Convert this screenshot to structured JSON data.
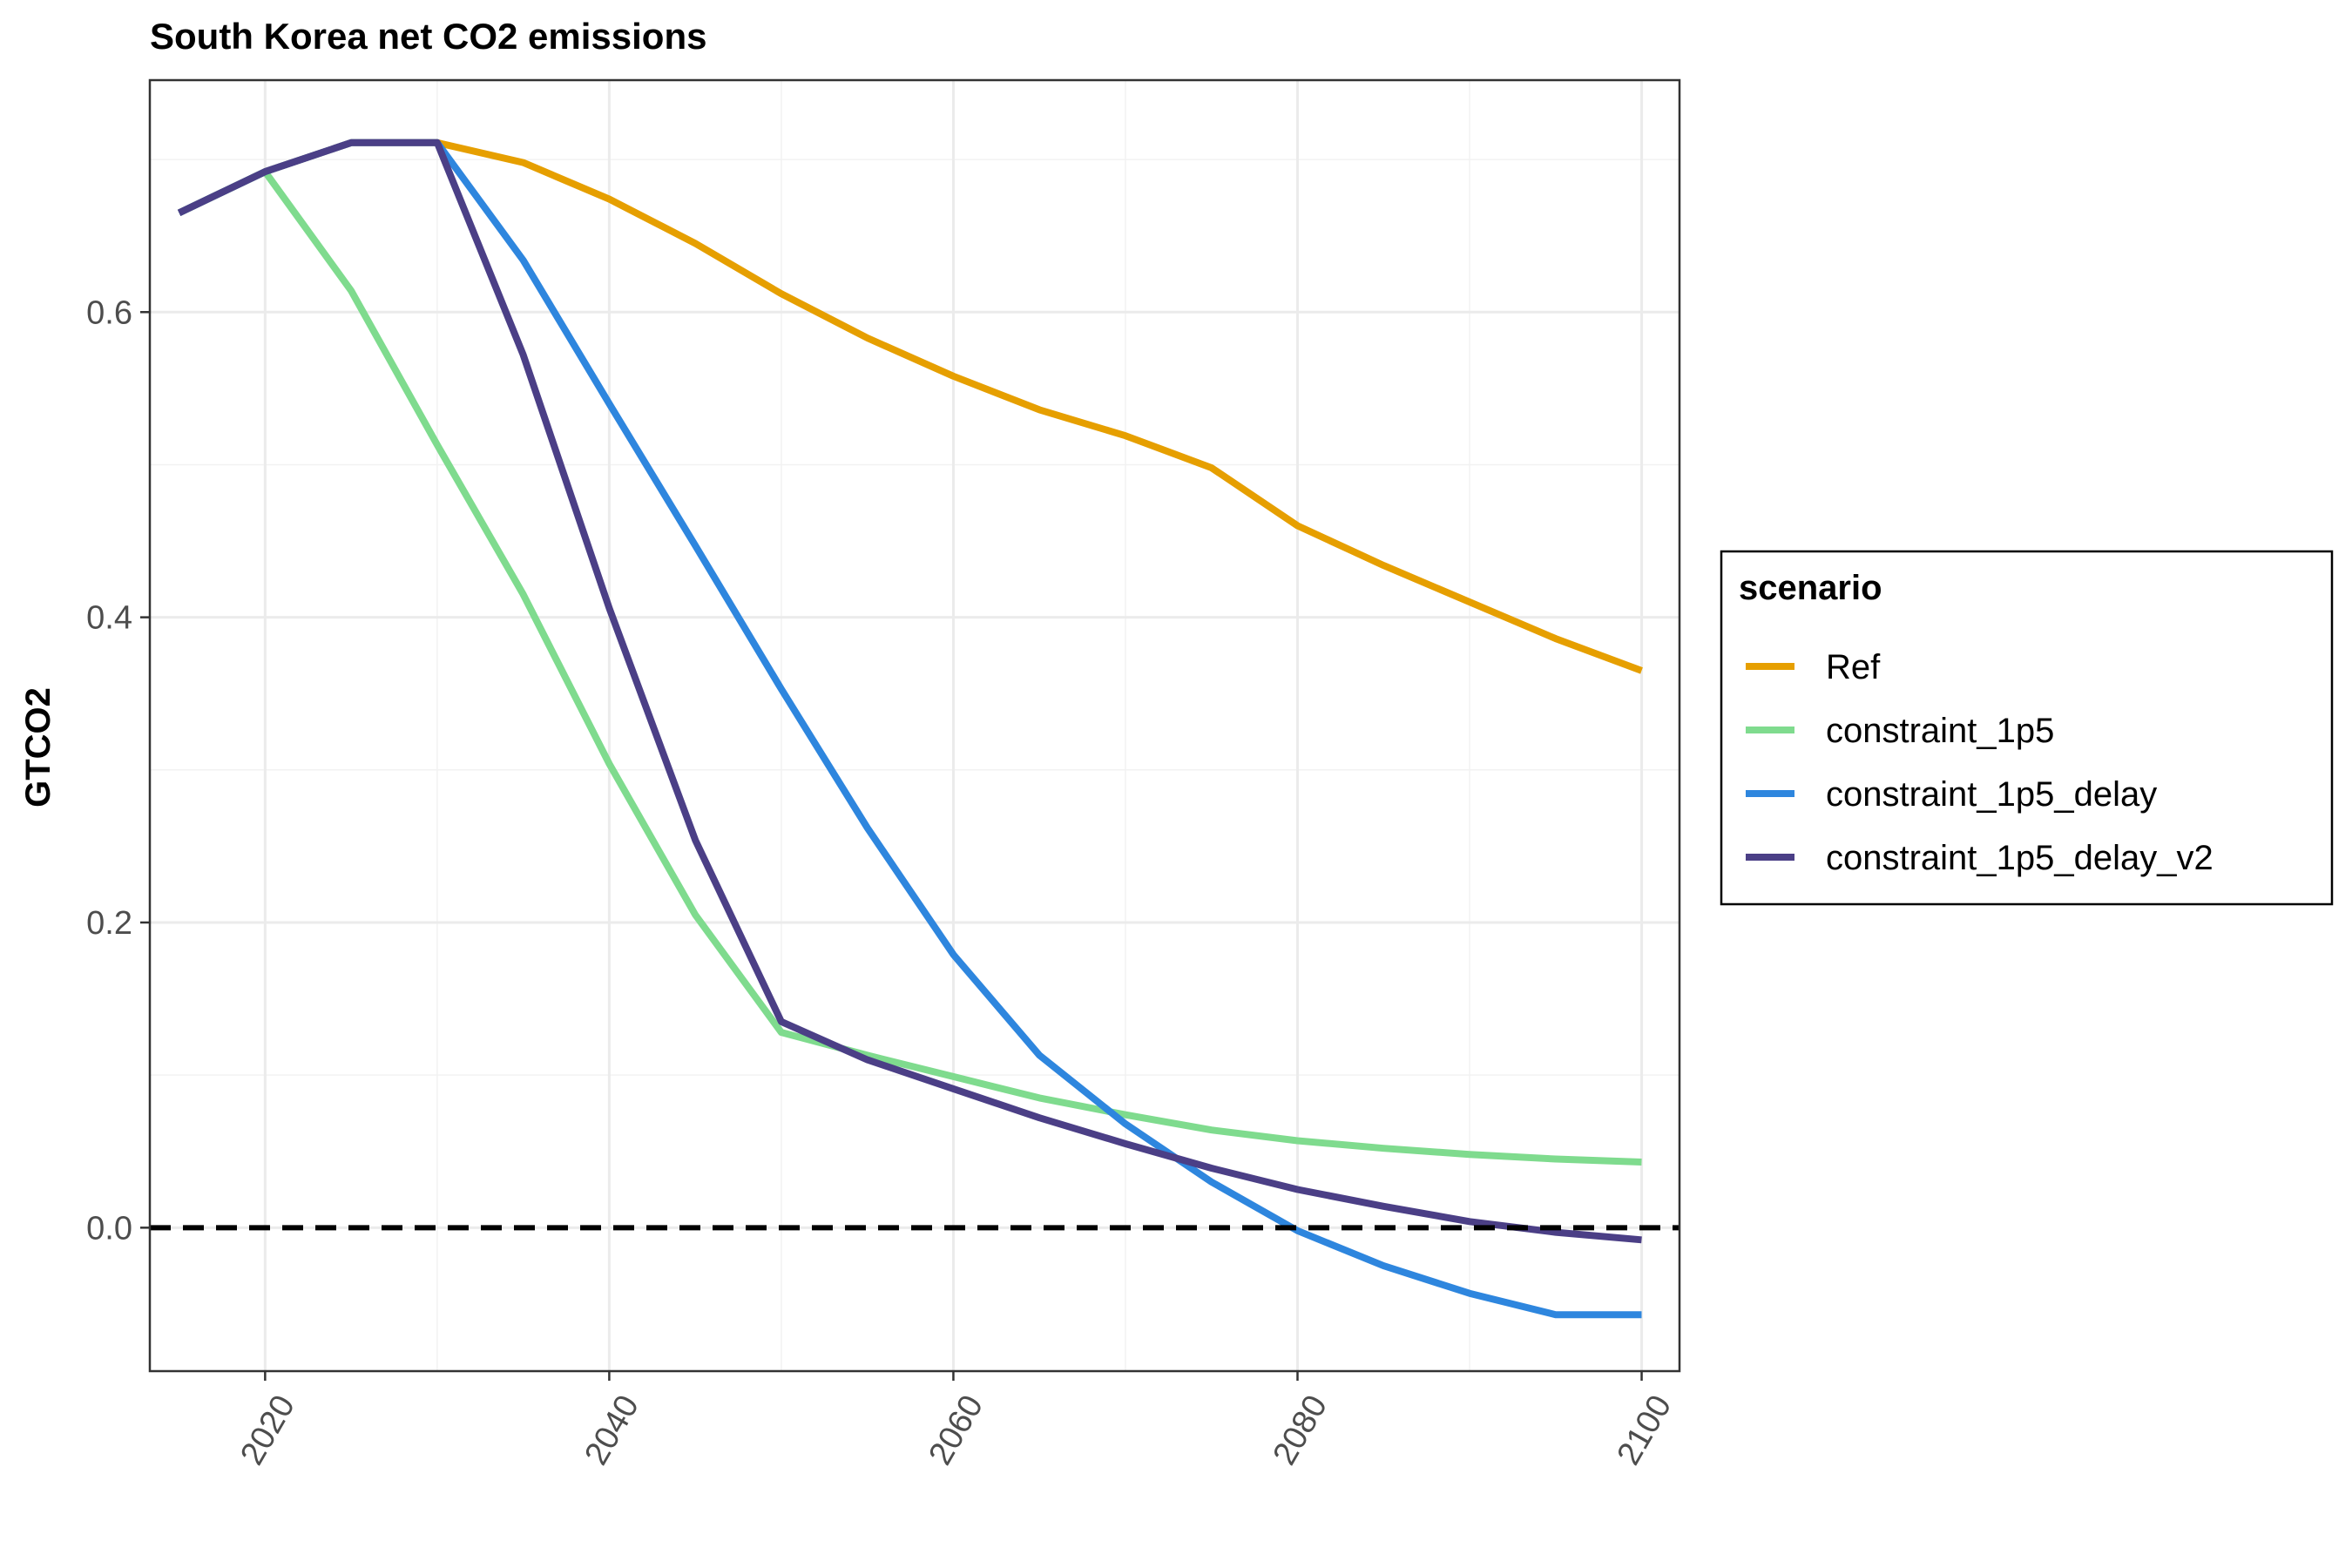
{
  "chart_data": {
    "type": "line",
    "title": "South Korea net CO2 emissions",
    "xlabel": "",
    "ylabel": "GTCO2",
    "xlim": [
      2013.3,
      2102.2
    ],
    "ylim": [
      -0.094,
      0.752
    ],
    "x_ticks": [
      2020,
      2040,
      2060,
      2080,
      2100
    ],
    "y_ticks": [
      0.0,
      0.2,
      0.4,
      0.6
    ],
    "y_tick_labels": [
      "0.0",
      "0.2",
      "0.4",
      "0.6"
    ],
    "grid": true,
    "reference_line": {
      "y": 0,
      "style": "dashed",
      "color": "#000000"
    },
    "legend": {
      "title": "scenario",
      "position": "right"
    },
    "series": [
      {
        "name": "Ref",
        "color": "#E69F00",
        "x": [
          2015,
          2020,
          2025,
          2030,
          2035,
          2040,
          2045,
          2050,
          2055,
          2060,
          2065,
          2070,
          2075,
          2080,
          2085,
          2090,
          2095,
          2100
        ],
        "values": [
          0.665,
          0.692,
          0.711,
          0.711,
          0.698,
          0.674,
          0.645,
          0.612,
          0.583,
          0.558,
          0.536,
          0.519,
          0.498,
          0.46,
          0.434,
          0.41,
          0.386,
          0.365
        ]
      },
      {
        "name": "constraint_1p5",
        "color": "#7FDB8E",
        "x": [
          2015,
          2020,
          2025,
          2030,
          2035,
          2040,
          2045,
          2050,
          2055,
          2060,
          2065,
          2070,
          2075,
          2080,
          2085,
          2090,
          2095,
          2100
        ],
        "values": [
          0.665,
          0.692,
          0.614,
          0.513,
          0.415,
          0.304,
          0.205,
          0.128,
          0.113,
          0.099,
          0.085,
          0.074,
          0.064,
          0.057,
          0.052,
          0.048,
          0.045,
          0.043
        ]
      },
      {
        "name": "constraint_1p5_delay",
        "color": "#2E86DE",
        "x": [
          2015,
          2020,
          2025,
          2030,
          2035,
          2040,
          2045,
          2050,
          2055,
          2060,
          2065,
          2070,
          2075,
          2080,
          2085,
          2090,
          2095,
          2100
        ],
        "values": [
          0.665,
          0.692,
          0.711,
          0.711,
          0.634,
          0.54,
          0.447,
          0.353,
          0.262,
          0.179,
          0.113,
          0.068,
          0.03,
          -0.002,
          -0.025,
          -0.043,
          -0.057,
          -0.057
        ]
      },
      {
        "name": "constraint_1p5_delay_v2",
        "color": "#4B3F86",
        "x": [
          2015,
          2020,
          2025,
          2030,
          2035,
          2040,
          2045,
          2050,
          2055,
          2060,
          2065,
          2070,
          2075,
          2080,
          2085,
          2090,
          2095,
          2100
        ],
        "values": [
          0.665,
          0.692,
          0.711,
          0.711,
          0.572,
          0.406,
          0.254,
          0.135,
          0.11,
          0.091,
          0.072,
          0.055,
          0.039,
          0.025,
          0.014,
          0.004,
          -0.003,
          -0.008
        ]
      }
    ]
  }
}
